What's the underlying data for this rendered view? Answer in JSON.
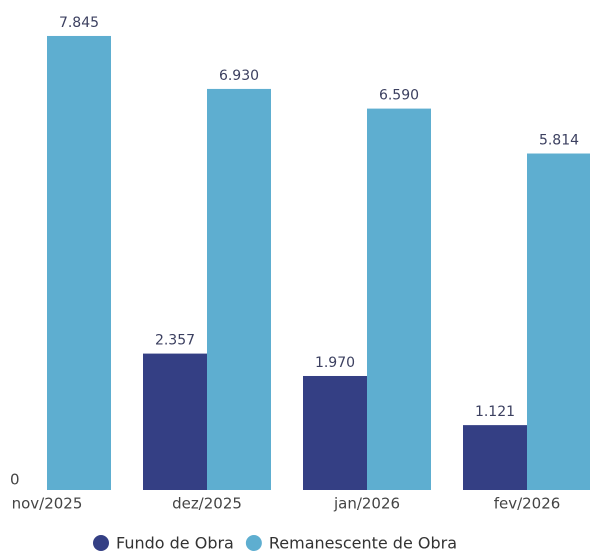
{
  "chart_data": {
    "type": "bar",
    "categories": [
      "nov/2025",
      "dez/2025",
      "jan/2026",
      "fev/2026"
    ],
    "series": [
      {
        "name": "Fundo de Obra",
        "color": "#343f84",
        "values": [
          null,
          2357,
          1970,
          1121
        ],
        "value_labels": [
          null,
          "2.357",
          "1.970",
          "1.121"
        ]
      },
      {
        "name": "Remanescente de Obra",
        "color": "#5eaed0",
        "values": [
          7845,
          6930,
          6590,
          5814
        ],
        "value_labels": [
          "7.845",
          "6.930",
          "6.590",
          "5.814"
        ]
      }
    ],
    "ylim": [
      0,
      8000
    ],
    "yticks": [
      0
    ],
    "grid": false,
    "legend": "bottom"
  }
}
